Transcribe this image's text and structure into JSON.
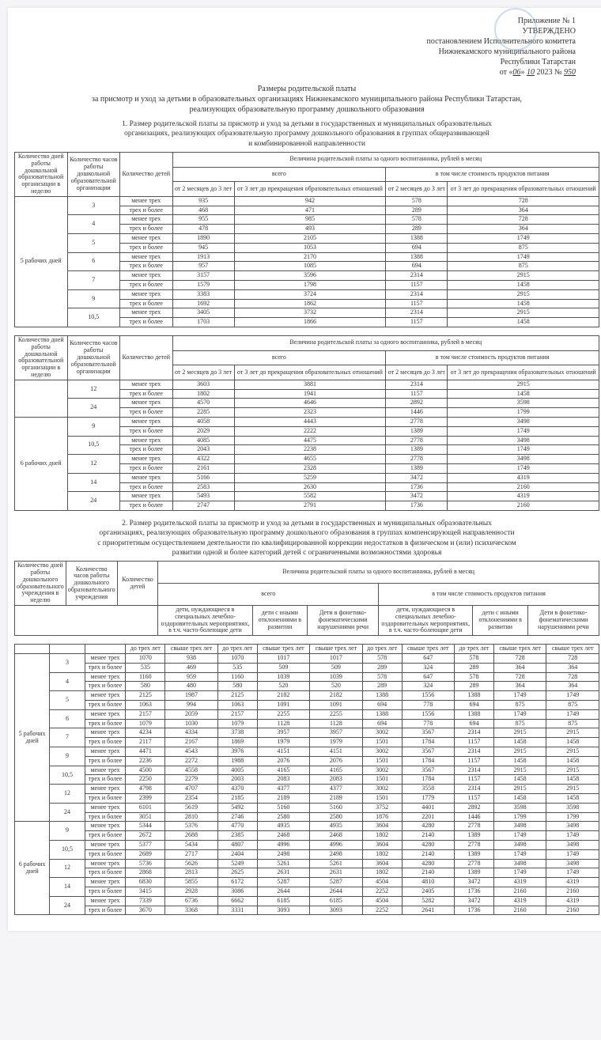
{
  "approval": {
    "l1": "Приложение № 1",
    "l2": "УТВЕРЖДЕНО",
    "l3": "постановлением Исполнительного комитета",
    "l4": "Нижнекамского муниципального района",
    "l5": "Республики Татарстан",
    "l6_pre": "от «",
    "l6_d": "06",
    "l6_mid": "» ",
    "l6_m": "10",
    "l6_y": " 2023  № ",
    "l6_n": "950"
  },
  "title": {
    "l1": "Размеры родительской платы",
    "l2": "за присмотр и уход за детьми в образовательных организациях Нижнекамского муниципального района Республики Татарстан,",
    "l3": "реализующих образовательную программу дошкольного образования"
  },
  "sec1": {
    "l1": "1. Размер родительской платы за присмотр и уход за детьми в государственных и муниципальных образовательных",
    "l2": "организациях, реализующих образовательную программу дошкольного образования в группах общеразвивающей",
    "l3": "и комбинированной направленности"
  },
  "hdr": {
    "days": "Количество дней работы дошкольной образовательной организации в неделю",
    "hours": "Количество часов работы дошкольной образовательной организации",
    "children": "Количество детей",
    "fee": "Величина родительской платы за одного воспитанника, рублей в месяц",
    "total": "всего",
    "food": "в том числе стоимость продуктов питания",
    "c1": "от 2 месяцев до 3 лет",
    "c2": "от 3 лет до прекращения образовательных отношений",
    "lt3": "менее трех",
    "ge3": "трех и более",
    "d5": "5 рабочих дней",
    "d6": "6 рабочих дней"
  },
  "t1a": [
    {
      "days": "5 рабочих дней",
      "hours": "3",
      "rows": [
        [
          "менее трех",
          "935",
          "942",
          "578",
          "728"
        ],
        [
          "трех и более",
          "468",
          "471",
          "289",
          "364"
        ]
      ]
    },
    {
      "hours": "4",
      "rows": [
        [
          "менее трех",
          "955",
          "985",
          "578",
          "728"
        ],
        [
          "трех и более",
          "478",
          "493",
          "289",
          "364"
        ]
      ]
    },
    {
      "hours": "5",
      "rows": [
        [
          "менее трех",
          "1890",
          "2105",
          "1388",
          "1749"
        ],
        [
          "трех и более",
          "945",
          "1053",
          "694",
          "875"
        ]
      ]
    },
    {
      "hours": "6",
      "rows": [
        [
          "менее трех",
          "1913",
          "2170",
          "1388",
          "1749"
        ],
        [
          "трех и более",
          "957",
          "1085",
          "694",
          "875"
        ]
      ]
    },
    {
      "hours": "7",
      "rows": [
        [
          "менее трех",
          "3157",
          "3596",
          "2314",
          "2915"
        ],
        [
          "трех и более",
          "1579",
          "1798",
          "1157",
          "1458"
        ]
      ]
    },
    {
      "hours": "9",
      "rows": [
        [
          "менее трех",
          "3383",
          "3724",
          "2314",
          "2915"
        ],
        [
          "трех и более",
          "1692",
          "1862",
          "1157",
          "1458"
        ]
      ]
    },
    {
      "hours": "10,5",
      "rows": [
        [
          "менее трех",
          "3405",
          "3732",
          "2314",
          "2915"
        ],
        [
          "трех и более",
          "1703",
          "1866",
          "1157",
          "1458"
        ]
      ]
    }
  ],
  "t1b": [
    {
      "days": "",
      "hours": "12",
      "rows": [
        [
          "менее трех",
          "3603",
          "3881",
          "2314",
          "2915"
        ],
        [
          "трех и более",
          "1802",
          "1941",
          "1157",
          "1458"
        ]
      ]
    },
    {
      "hours": "24",
      "rows": [
        [
          "менее трех",
          "4570",
          "4646",
          "2892",
          "3598"
        ],
        [
          "трех и более",
          "2285",
          "2323",
          "1446",
          "1799"
        ]
      ]
    },
    {
      "days": "6 рабочих дней",
      "hours": "9",
      "rows": [
        [
          "менее трех",
          "4058",
          "4443",
          "2778",
          "3498"
        ],
        [
          "трех и более",
          "2029",
          "2222",
          "1389",
          "1749"
        ]
      ]
    },
    {
      "hours": "10,5",
      "rows": [
        [
          "менее трех",
          "4085",
          "4475",
          "2778",
          "3498"
        ],
        [
          "трех и более",
          "2043",
          "2238",
          "1389",
          "1749"
        ]
      ]
    },
    {
      "hours": "12",
      "rows": [
        [
          "менее трех",
          "4322",
          "4655",
          "2778",
          "3498"
        ],
        [
          "трех и более",
          "2161",
          "2328",
          "1389",
          "1749"
        ]
      ]
    },
    {
      "hours": "14",
      "rows": [
        [
          "менее трех",
          "5166",
          "5259",
          "3472",
          "4319"
        ],
        [
          "трех и более",
          "2583",
          "2630",
          "1736",
          "2160"
        ]
      ]
    },
    {
      "hours": "24",
      "rows": [
        [
          "менее трех",
          "5493",
          "5582",
          "3472",
          "4319"
        ],
        [
          "трех и более",
          "2747",
          "2791",
          "1736",
          "2160"
        ]
      ]
    }
  ],
  "sec2": {
    "l1": "2. Размер родительской платы за присмотр и уход за детьми в государственных и муниципальных образовательных",
    "l2": "организациях, реализующих образовательную программу дошкольного образования в группах компенсирующей направленности",
    "l3": "с приоритетным осуществлением деятельности по квалифицированной коррекции недостатков в физическом и (или) психическом",
    "l4": "развитии одной и более категорий детей с ограниченными возможностями здоровья"
  },
  "hdr2": {
    "days": "Количество дней работы дошкольного образовательного учреждения в неделю",
    "hours": "Количество часов работы дошкольного образовательного учреждения",
    "children": "Количество детей",
    "g1": "дети, нуждающиеся в специальных лечебно-оздоровительных мероприятиях, в т.ч. часто-болеющие дети",
    "g2": "дети с иными отклонениями в развитии",
    "g3": "Дети в фонетико-фонематическими нарушениями речи",
    "u3": "до трех лет",
    "o3": "свыше трех лет",
    "o3only": "свыше трех лет"
  },
  "t2": [
    {
      "days": "5 рабочих дней",
      "hours": "3",
      "rows": [
        [
          "менее трех",
          "1070",
          "938",
          "1070",
          "1017",
          "1017",
          "578",
          "647",
          "578",
          "728",
          "728"
        ],
        [
          "трех и более",
          "535",
          "469",
          "535",
          "509",
          "509",
          "289",
          "324",
          "289",
          "364",
          "364"
        ]
      ]
    },
    {
      "hours": "4",
      "rows": [
        [
          "менее трех",
          "1160",
          "959",
          "1160",
          "1039",
          "1039",
          "578",
          "647",
          "578",
          "728",
          "728"
        ],
        [
          "трех и более",
          "580",
          "480",
          "580",
          "520",
          "520",
          "289",
          "324",
          "289",
          "364",
          "364"
        ]
      ]
    },
    {
      "hours": "5",
      "rows": [
        [
          "менее трех",
          "2125",
          "1987",
          "2125",
          "2182",
          "2182",
          "1388",
          "1556",
          "1388",
          "1749",
          "1749"
        ],
        [
          "трех и более",
          "1063",
          "994",
          "1063",
          "1091",
          "1091",
          "694",
          "778",
          "694",
          "875",
          "875"
        ]
      ]
    },
    {
      "hours": "6",
      "rows": [
        [
          "менее трех",
          "2157",
          "2059",
          "2157",
          "2255",
          "2255",
          "1388",
          "1556",
          "1388",
          "1749",
          "1749"
        ],
        [
          "трех и более",
          "1079",
          "1030",
          "1079",
          "1128",
          "1128",
          "694",
          "778",
          "694",
          "875",
          "875"
        ]
      ]
    },
    {
      "hours": "7",
      "rows": [
        [
          "менее трех",
          "4234",
          "4334",
          "3738",
          "3957",
          "3957",
          "3002",
          "3567",
          "2314",
          "2915",
          "2915"
        ],
        [
          "трех и более",
          "2117",
          "2167",
          "1869",
          "1979",
          "1979",
          "1501",
          "1784",
          "1157",
          "1458",
          "1458"
        ]
      ]
    },
    {
      "hours": "9",
      "rows": [
        [
          "менее трех",
          "4471",
          "4543",
          "3976",
          "4151",
          "4151",
          "3002",
          "3567",
          "2314",
          "2915",
          "2915"
        ],
        [
          "трех и более",
          "2236",
          "2272",
          "1988",
          "2076",
          "2076",
          "1501",
          "1784",
          "1157",
          "1458",
          "1458"
        ]
      ]
    },
    {
      "hours": "10,5",
      "rows": [
        [
          "менее трех",
          "4500",
          "4558",
          "4005",
          "4165",
          "4165",
          "3002",
          "3567",
          "2314",
          "2915",
          "2915"
        ],
        [
          "трех и более",
          "2250",
          "2279",
          "2003",
          "2083",
          "2083",
          "1501",
          "1784",
          "1157",
          "1458",
          "1458"
        ]
      ]
    },
    {
      "hours": "12",
      "rows": [
        [
          "менее трех",
          "4798",
          "4707",
          "4370",
          "4377",
          "4377",
          "3002",
          "3558",
          "2314",
          "2915",
          "2915"
        ],
        [
          "трех и более",
          "2399",
          "2354",
          "2185",
          "2189",
          "2189",
          "1501",
          "1779",
          "1157",
          "1458",
          "1458"
        ]
      ]
    },
    {
      "hours": "24",
      "rows": [
        [
          "менее трех",
          "6101",
          "5619",
          "5492",
          "5160",
          "5160",
          "3752",
          "4401",
          "2892",
          "3598",
          "3598"
        ],
        [
          "трех и более",
          "3051",
          "2810",
          "2746",
          "2580",
          "2580",
          "1876",
          "2201",
          "1446",
          "1799",
          "1799"
        ]
      ]
    },
    {
      "days": "6 рабочих дней",
      "hours": "9",
      "rows": [
        [
          "менее трех",
          "5344",
          "5376",
          "4770",
          "4935",
          "4935",
          "3604",
          "4280",
          "2778",
          "3498",
          "3498"
        ],
        [
          "трех и более",
          "2672",
          "2688",
          "2385",
          "2468",
          "2468",
          "1802",
          "2140",
          "1389",
          "1749",
          "1749"
        ]
      ]
    },
    {
      "hours": "10,5",
      "rows": [
        [
          "менее трех",
          "5377",
          "5434",
          "4807",
          "4996",
          "4996",
          "3604",
          "4280",
          "2778",
          "3498",
          "3498"
        ],
        [
          "трех и более",
          "2689",
          "2717",
          "2404",
          "2498",
          "2498",
          "1802",
          "2140",
          "1389",
          "1749",
          "1749"
        ]
      ]
    },
    {
      "hours": "12",
      "rows": [
        [
          "менее трех",
          "5736",
          "5626",
          "5249",
          "5261",
          "5261",
          "3604",
          "4280",
          "2778",
          "3498",
          "3498"
        ],
        [
          "трех и более",
          "2868",
          "2813",
          "2625",
          "2631",
          "2631",
          "1802",
          "2140",
          "1389",
          "1749",
          "1749"
        ]
      ]
    },
    {
      "hours": "14",
      "rows": [
        [
          "менее трех",
          "6830",
          "5855",
          "6172",
          "5287",
          "5287",
          "4504",
          "4810",
          "3472",
          "4319",
          "4319"
        ],
        [
          "трех и более",
          "3415",
          "2928",
          "3086",
          "2644",
          "2644",
          "2252",
          "2405",
          "1736",
          "2160",
          "2160"
        ]
      ]
    },
    {
      "hours": "24",
      "rows": [
        [
          "менее трех",
          "7339",
          "6736",
          "6662",
          "6185",
          "6185",
          "4504",
          "5282",
          "3472",
          "4319",
          "4319"
        ],
        [
          "трех и более",
          "3670",
          "3368",
          "3331",
          "3093",
          "3093",
          "2252",
          "2641",
          "1736",
          "2160",
          "2160"
        ]
      ]
    }
  ]
}
